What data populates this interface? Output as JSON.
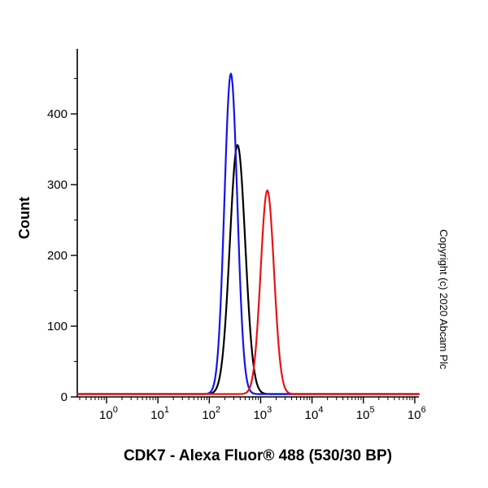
{
  "chart_data": {
    "type": "line",
    "title": "",
    "xlabel": "CDK7 - Alexa Fluor® 488 (530/30 BP)",
    "ylabel": "Count",
    "x_scale": "log10",
    "xlim_log": [
      -0.57,
      6.08
    ],
    "ylim": [
      0,
      492
    ],
    "x_major_ticks_exponents": [
      0,
      1,
      2,
      3,
      4,
      5,
      6
    ],
    "y_major_ticks": [
      0,
      100,
      200,
      300,
      400
    ],
    "y_minor_step": 50,
    "grid": "off",
    "legend": "none",
    "series": [
      {
        "name": "black-curve",
        "color": "#000000",
        "peak_log10_x": 2.55,
        "peak_x_approx": 355,
        "peak_count": 352,
        "sigma_log10": 0.15,
        "baseline_count": 4
      },
      {
        "name": "blue-curve",
        "color": "#1414e6",
        "peak_log10_x": 2.42,
        "peak_x_approx": 263,
        "peak_count": 453,
        "sigma_log10": 0.125,
        "baseline_count": 4
      },
      {
        "name": "red-curve",
        "color": "#e61414",
        "peak_log10_x": 3.13,
        "peak_x_approx": 1350,
        "peak_count": 288,
        "sigma_log10": 0.13,
        "baseline_count": 4
      }
    ]
  },
  "annotations": {
    "copyright": "Copyright (c) 2020 Abcam Plc"
  }
}
